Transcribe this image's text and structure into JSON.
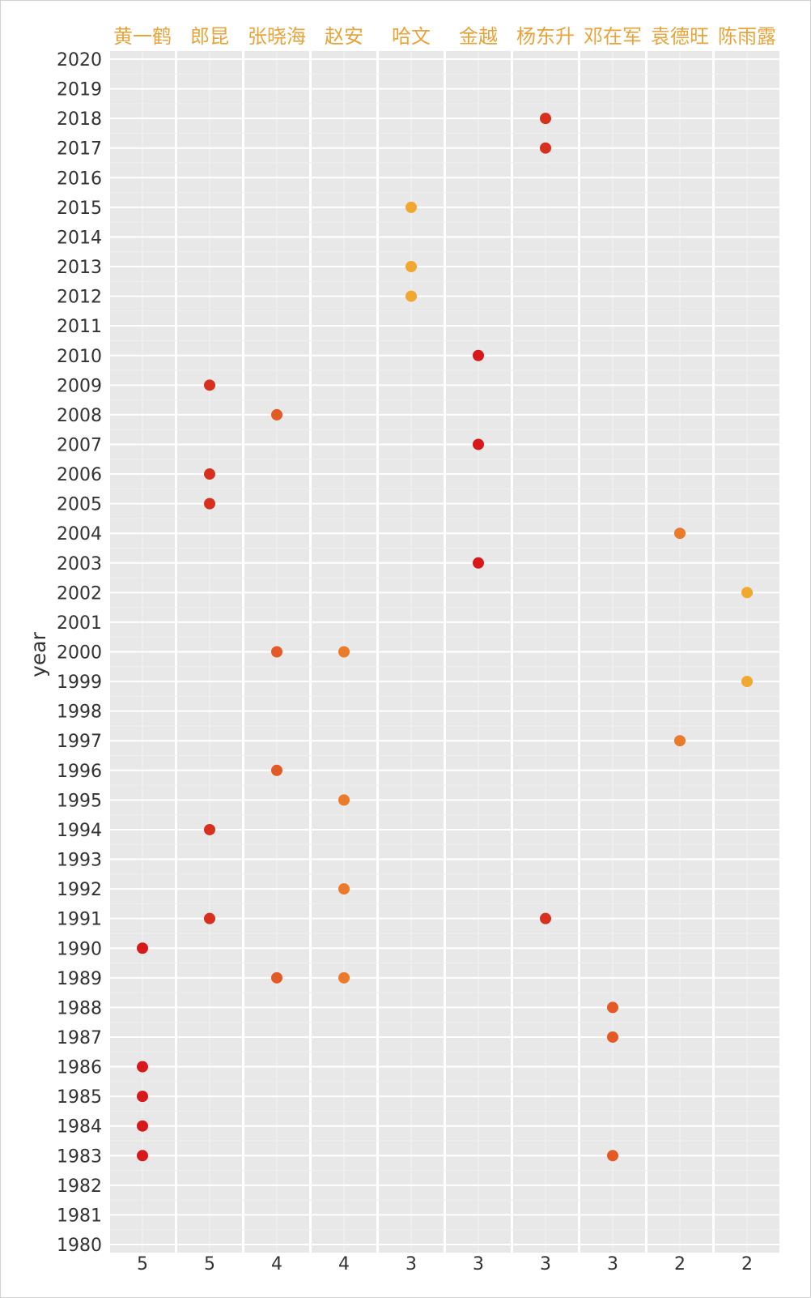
{
  "chart_data": {
    "type": "scatter",
    "title": "",
    "xlabel": "",
    "ylabel": "year",
    "ylim": [
      1980,
      2020
    ],
    "grid": true,
    "legend": "none",
    "categories": [
      "黄一鹤",
      "郎昆",
      "张晓海",
      "赵安",
      "哈文",
      "金越",
      "杨东升",
      "邓在军",
      "袁德旺",
      "陈雨露"
    ],
    "bottom_labels": [
      "5",
      "5",
      "4",
      "4",
      "3",
      "3",
      "3",
      "3",
      "2",
      "2"
    ],
    "top_label_color": "#e8a33a",
    "panel_background": "#e8e8e8",
    "series": [
      {
        "category": "黄一鹤",
        "color": "#d7191c",
        "years": [
          1983,
          1984,
          1985,
          1986,
          1990
        ]
      },
      {
        "category": "郎昆",
        "color": "#d7301f",
        "years": [
          1991,
          1994,
          2005,
          2006,
          2009
        ]
      },
      {
        "category": "张晓海",
        "color": "#e45a25",
        "years": [
          1989,
          1996,
          2000,
          2008
        ]
      },
      {
        "category": "赵安",
        "color": "#eb7a2a",
        "years": [
          1989,
          1992,
          1995,
          2000
        ]
      },
      {
        "category": "哈文",
        "color": "#f0a830",
        "years": [
          2012,
          2013,
          2015
        ]
      },
      {
        "category": "金越",
        "color": "#d7191c",
        "years": [
          2003,
          2007,
          2010
        ]
      },
      {
        "category": "杨东升",
        "color": "#d7301f",
        "years": [
          1991,
          2017,
          2018
        ]
      },
      {
        "category": "邓在军",
        "color": "#e45a25",
        "years": [
          1983,
          1987,
          1988
        ]
      },
      {
        "category": "袁德旺",
        "color": "#eb7a2a",
        "years": [
          1997,
          2004
        ]
      },
      {
        "category": "陈雨露",
        "color": "#f0a830",
        "years": [
          1999,
          2002
        ]
      }
    ]
  }
}
